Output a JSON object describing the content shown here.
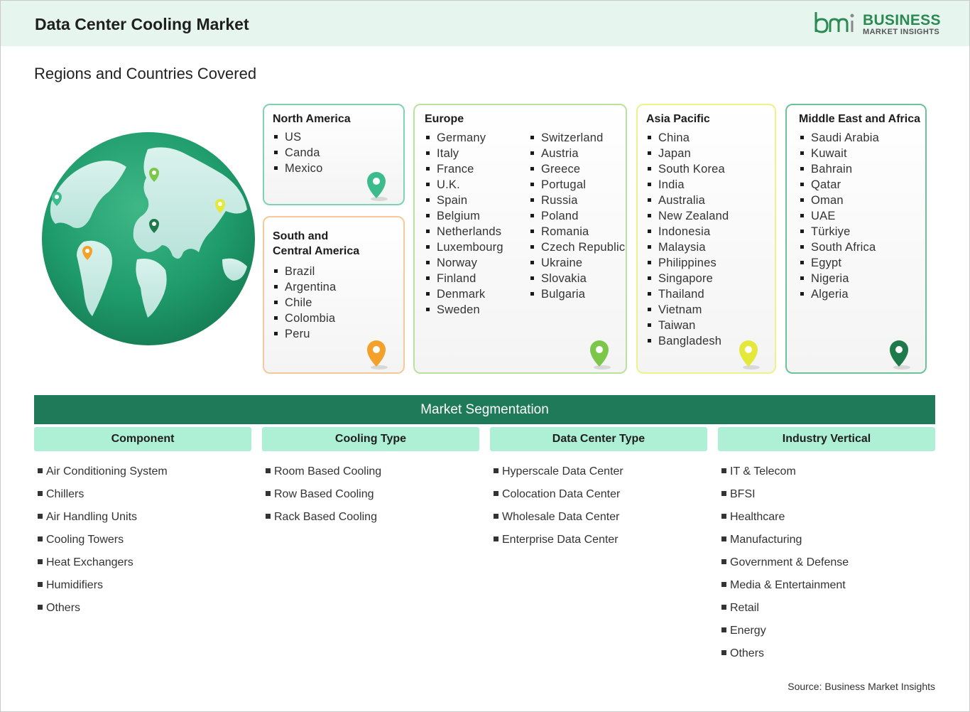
{
  "header": {
    "title": "Data Center Cooling Market"
  },
  "logo": {
    "line1": "BUSINESS",
    "line2": "MARKET INSIGHTS",
    "icon": "bmi-logo-icon",
    "color": "#2a8a52"
  },
  "regions_title": "Regions and Countries Covered",
  "regions": {
    "north_america": {
      "name": "North America",
      "countries": [
        "US",
        "Canda",
        "Mexico"
      ],
      "pin_color": "#3cbc8c"
    },
    "south_central_america": {
      "name_line1": "South and",
      "name_line2": "Central America",
      "countries": [
        "Brazil",
        "Argentina",
        "Chile",
        "Colombia",
        "Peru"
      ],
      "pin_color": "#f3a12a"
    },
    "europe": {
      "name": "Europe",
      "countries_col1": [
        "Germany",
        "Italy",
        "France",
        "U.K.",
        "Spain",
        "Belgium",
        "Netherlands",
        "Luxembourg",
        "Norway",
        "Finland",
        "Denmark",
        "Sweden"
      ],
      "countries_col2": [
        "Switzerland",
        "Austria",
        "Greece",
        "Portugal",
        "Russia",
        "Poland",
        "Romania",
        "Czech Republic",
        "Ukraine",
        "Slovakia",
        "Bulgaria"
      ],
      "pin_color": "#7cc74a"
    },
    "asia_pacific": {
      "name": "Asia Pacific",
      "countries": [
        "China",
        "Japan",
        "South Korea",
        "India",
        "Australia",
        "New Zealand",
        "Indonesia",
        "Malaysia",
        "Philippines",
        "Singapore",
        "Thailand",
        "Vietnam",
        "Taiwan",
        "Bangladesh"
      ],
      "pin_color": "#e4e83a"
    },
    "middle_east_africa": {
      "name": "Middle East and Africa",
      "countries": [
        "Saudi Arabia",
        "Kuwait",
        "Bahrain",
        "Qatar",
        "Oman",
        "UAE",
        "Türkiye",
        "South Africa",
        "Egypt",
        "Nigeria",
        "Algeria"
      ],
      "pin_color": "#1e7a4a"
    }
  },
  "segmentation": {
    "title": "Market Segmentation",
    "component": {
      "label": "Component",
      "items": [
        "Air Conditioning System",
        "Chillers",
        "Air Handling Units",
        "Cooling Towers",
        "Heat Exchangers",
        "Humidifiers",
        "Others"
      ]
    },
    "cooling_type": {
      "label": "Cooling Type",
      "items": [
        "Room Based Cooling",
        "Row Based Cooling",
        "Rack Based Cooling"
      ]
    },
    "data_center_type": {
      "label": "Data Center Type",
      "items": [
        "Hyperscale Data Center",
        "Colocation Data Center",
        "Wholesale Data Center",
        "Enterprise Data Center"
      ]
    },
    "industry_vertical": {
      "label": "Industry Vertical",
      "items": [
        "IT & Telecom",
        "BFSI",
        "Healthcare",
        "Manufacturing",
        "Government & Defense",
        "Media & Entertainment",
        "Retail",
        "Energy",
        "Others"
      ]
    }
  },
  "source": "Source: Business Market Insights"
}
